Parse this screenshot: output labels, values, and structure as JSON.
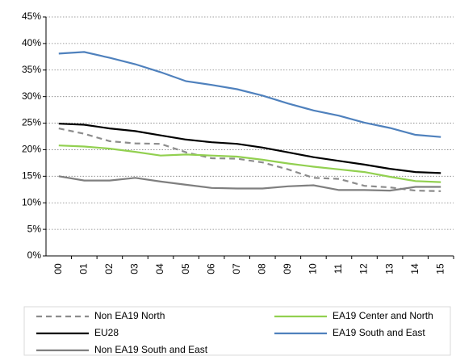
{
  "chart_data": {
    "type": "line",
    "categories": [
      "00",
      "01",
      "02",
      "03",
      "04",
      "05",
      "06",
      "07",
      "08",
      "09",
      "10",
      "11",
      "12",
      "13",
      "14",
      "15"
    ],
    "ylim": [
      0,
      45
    ],
    "yticks": [
      {
        "value": 0,
        "label": "0%"
      },
      {
        "value": 5,
        "label": "5%"
      },
      {
        "value": 10,
        "label": "10%"
      },
      {
        "value": 15,
        "label": "15%"
      },
      {
        "value": 20,
        "label": "20%"
      },
      {
        "value": 25,
        "label": "25%"
      },
      {
        "value": 30,
        "label": "30%"
      },
      {
        "value": 35,
        "label": "35%"
      },
      {
        "value": 40,
        "label": "40%"
      },
      {
        "value": 45,
        "label": "45%"
      }
    ],
    "grid": true,
    "series": [
      {
        "name": "Non EA19 North",
        "color": "#8c8c8c",
        "line_style": "dashed",
        "values": [
          24.0,
          23.0,
          21.6,
          21.2,
          21.1,
          19.5,
          18.4,
          18.3,
          17.6,
          16.3,
          14.7,
          14.5,
          13.2,
          12.9,
          12.3,
          12.2
        ]
      },
      {
        "name": "EA19 Center and North",
        "color": "#92d050",
        "line_style": "solid",
        "values": [
          20.8,
          20.6,
          20.2,
          19.6,
          18.9,
          19.1,
          18.9,
          18.7,
          18.1,
          17.4,
          16.8,
          16.3,
          15.8,
          14.9,
          14.1,
          13.9
        ]
      },
      {
        "name": "EU28",
        "color": "#000000",
        "line_style": "solid",
        "values": [
          24.9,
          24.7,
          24.0,
          23.5,
          22.7,
          21.9,
          21.4,
          21.1,
          20.4,
          19.5,
          18.6,
          17.9,
          17.2,
          16.4,
          15.8,
          15.6
        ]
      },
      {
        "name": "EA19 South and East",
        "color": "#4f81bd",
        "line_style": "solid",
        "values": [
          38.1,
          38.4,
          37.3,
          36.1,
          34.6,
          32.9,
          32.2,
          31.4,
          30.2,
          28.7,
          27.4,
          26.4,
          25.1,
          24.1,
          22.8,
          22.4
        ]
      },
      {
        "name": "Non EA19 South and East",
        "color": "#7f7f7f",
        "line_style": "solid",
        "values": [
          15.0,
          14.2,
          14.2,
          14.7,
          14.0,
          13.4,
          12.8,
          12.7,
          12.7,
          13.1,
          13.3,
          12.4,
          12.4,
          12.3,
          13.0,
          13.0
        ]
      }
    ]
  }
}
